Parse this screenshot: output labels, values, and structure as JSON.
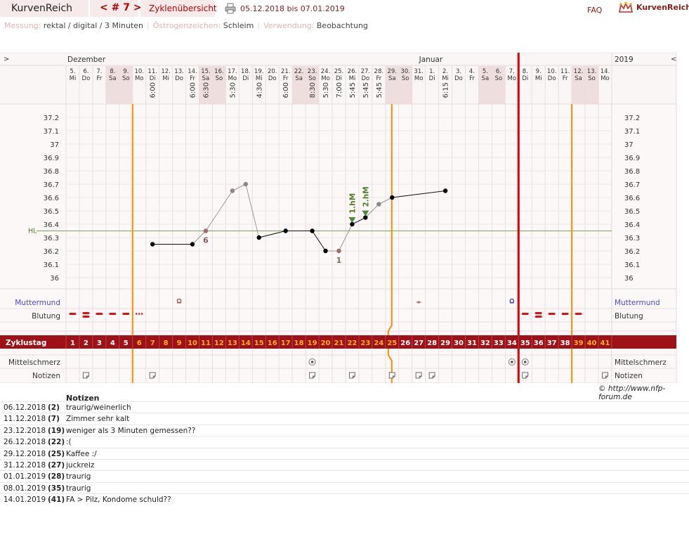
{
  "header": {
    "app_title": "KurvenReich",
    "cycle_nav": "< # 7 >",
    "tab_label": "Zyklenübersicht",
    "date_range": "05.12.2018 bis 07.01.2019",
    "faq_label": "FAQ",
    "logo_text": "KurvenReich"
  },
  "meta": {
    "measurement_label": "Messung:",
    "measurement_value": "rektal / digital / 3 Minuten",
    "estrogen_label": "Östrogenzeichen:",
    "estrogen_value": "Schleim",
    "usage_label": "Verwendung:",
    "usage_value": "Beobachtung"
  },
  "chart_data": {
    "type": "line",
    "title": "",
    "months": {
      "december": "Dezember",
      "january": "Januar",
      "year": "2019"
    },
    "nav_prev": ">",
    "nav_next": "<",
    "days": [
      {
        "date": "5.",
        "wd": "Mi",
        "time": "",
        "we": false
      },
      {
        "date": "6.",
        "wd": "Do",
        "time": "",
        "we": false
      },
      {
        "date": "7.",
        "wd": "Fr",
        "time": "",
        "we": false
      },
      {
        "date": "8.",
        "wd": "Sa",
        "time": "",
        "we": true
      },
      {
        "date": "9.",
        "wd": "So",
        "time": "",
        "we": true
      },
      {
        "date": "10.",
        "wd": "Mo",
        "time": "",
        "we": false
      },
      {
        "date": "11.",
        "wd": "Di",
        "time": "6:00",
        "we": false
      },
      {
        "date": "12.",
        "wd": "Mi",
        "time": "",
        "we": false
      },
      {
        "date": "13.",
        "wd": "Do",
        "time": "",
        "we": false
      },
      {
        "date": "14.",
        "wd": "Fr",
        "time": "6:00",
        "we": false
      },
      {
        "date": "15.",
        "wd": "Sa",
        "time": "6:30",
        "we": true
      },
      {
        "date": "16.",
        "wd": "So",
        "time": "",
        "we": true
      },
      {
        "date": "17.",
        "wd": "Mo",
        "time": "5:30",
        "we": false
      },
      {
        "date": "18.",
        "wd": "Di",
        "time": "",
        "we": false
      },
      {
        "date": "19.",
        "wd": "Mi",
        "time": "4:30",
        "we": false
      },
      {
        "date": "20.",
        "wd": "Do",
        "time": "",
        "we": false
      },
      {
        "date": "21.",
        "wd": "Fr",
        "time": "6:00",
        "we": false
      },
      {
        "date": "22.",
        "wd": "Sa",
        "time": "",
        "we": true
      },
      {
        "date": "23.",
        "wd": "So",
        "time": "8:30",
        "we": true
      },
      {
        "date": "24.",
        "wd": "Mo",
        "time": "5:30",
        "we": false
      },
      {
        "date": "25.",
        "wd": "Di",
        "time": "7:00",
        "we": false
      },
      {
        "date": "26.",
        "wd": "Mi",
        "time": "5:45",
        "we": false
      },
      {
        "date": "27.",
        "wd": "Do",
        "time": "5:45",
        "we": false
      },
      {
        "date": "28.",
        "wd": "Fr",
        "time": "5:45",
        "we": false
      },
      {
        "date": "29.",
        "wd": "Sa",
        "time": "",
        "we": true
      },
      {
        "date": "30.",
        "wd": "So",
        "time": "",
        "we": true
      },
      {
        "date": "31.",
        "wd": "Mo",
        "time": "",
        "we": false
      },
      {
        "date": "1.",
        "wd": "Di",
        "time": "",
        "we": false
      },
      {
        "date": "2.",
        "wd": "Mi",
        "time": "6:15",
        "we": false
      },
      {
        "date": "3.",
        "wd": "Do",
        "time": "",
        "we": false
      },
      {
        "date": "4.",
        "wd": "Fr",
        "time": "",
        "we": false
      },
      {
        "date": "5.",
        "wd": "Sa",
        "time": "",
        "we": true
      },
      {
        "date": "6.",
        "wd": "So",
        "time": "",
        "we": true
      },
      {
        "date": "7.",
        "wd": "Mo",
        "time": "",
        "we": false
      },
      {
        "date": "8.",
        "wd": "Di",
        "time": "",
        "we": false
      },
      {
        "date": "9.",
        "wd": "Mi",
        "time": "",
        "we": false
      },
      {
        "date": "10.",
        "wd": "Do",
        "time": "",
        "we": false
      },
      {
        "date": "11.",
        "wd": "Fr",
        "time": "",
        "we": false
      },
      {
        "date": "12.",
        "wd": "Sa",
        "time": "",
        "we": true
      },
      {
        "date": "13.",
        "wd": "So",
        "time": "",
        "we": true
      },
      {
        "date": "14.",
        "wd": "Mo",
        "time": "",
        "we": false
      }
    ],
    "y_ticks": [
      "37.2",
      "37.1",
      "37",
      "36.9",
      "36.8",
      "36.7",
      "36.6",
      "36.5",
      "36.4",
      "36.3",
      "36.2",
      "36.1",
      "36"
    ],
    "ylim": [
      36.0,
      37.2
    ],
    "hl_label": "HL",
    "hl_value": 36.35,
    "temperatures": [
      {
        "day": 7,
        "temp": 36.25,
        "grey": false
      },
      {
        "day": 10,
        "temp": 36.25,
        "grey": false
      },
      {
        "day": 11,
        "temp": 36.35,
        "grey": true,
        "label": "6"
      },
      {
        "day": 13,
        "temp": 36.65,
        "grey": true
      },
      {
        "day": 14,
        "temp": 36.7,
        "grey": true
      },
      {
        "day": 15,
        "temp": 36.3,
        "grey": false
      },
      {
        "day": 17,
        "temp": 36.35,
        "grey": false
      },
      {
        "day": 19,
        "temp": 36.35,
        "grey": false
      },
      {
        "day": 20,
        "temp": 36.2,
        "grey": false
      },
      {
        "day": 21,
        "temp": 36.2,
        "grey": true,
        "label": "1"
      },
      {
        "day": 22,
        "temp": 36.4,
        "grey": false
      },
      {
        "day": 23,
        "temp": 36.45,
        "grey": false
      },
      {
        "day": 24,
        "temp": 36.55,
        "grey": true
      },
      {
        "day": 25,
        "temp": 36.6,
        "grey": false
      },
      {
        "day": 29,
        "temp": 36.65,
        "grey": false
      }
    ],
    "markers": [
      {
        "day": 22,
        "label": "1.hM"
      },
      {
        "day": 23,
        "label": "2.hM"
      }
    ],
    "rows": {
      "muttermund": "Muttermund",
      "blutung": "Blutung",
      "zyklustag": "Zyklustag",
      "mittelschmerz": "Mittelschmerz",
      "notizen": "Notizen"
    },
    "cycle_days": [
      "1",
      "2",
      "3",
      "4",
      "5",
      "6",
      "7",
      "8",
      "9",
      "10",
      "11",
      "12",
      "13",
      "14",
      "15",
      "16",
      "17",
      "18",
      "19",
      "20",
      "21",
      "22",
      "23",
      "24",
      "25",
      "26",
      "27",
      "28",
      "29",
      "30",
      "31",
      "32",
      "33",
      "34",
      "35",
      "36",
      "37",
      "38",
      "39",
      "40",
      "41"
    ],
    "muttermund_days": [
      9,
      27,
      34
    ],
    "bleeding": [
      {
        "day": 1,
        "style": "dash"
      },
      {
        "day": 2,
        "style": "double"
      },
      {
        "day": 3,
        "style": "dash"
      },
      {
        "day": 4,
        "style": "dash"
      },
      {
        "day": 5,
        "style": "dash"
      },
      {
        "day": 6,
        "style": "dots"
      },
      {
        "day": 35,
        "style": "dash"
      },
      {
        "day": 36,
        "style": "double"
      },
      {
        "day": 37,
        "style": "dash"
      },
      {
        "day": 38,
        "style": "dash"
      },
      {
        "day": 39,
        "style": "dash"
      }
    ],
    "mittelschmerz_days": [
      19,
      34,
      35
    ],
    "note_days": [
      2,
      7,
      19,
      22,
      25,
      27,
      28,
      35,
      41
    ],
    "orange_days": [
      6,
      25,
      39
    ],
    "cycle_end_day": 35,
    "colors": {
      "accent": "#9e1116",
      "orange": "#ff8c00",
      "green": "#4f7f27",
      "grey_point": "#888888",
      "weekend": "#efdede"
    }
  },
  "copyright": "© http://www.nfp-forum.de",
  "notes": {
    "heading": "Notizen",
    "entries": [
      {
        "date": "06.12.2018",
        "day": "(2)",
        "text": "traurig/weinerlich"
      },
      {
        "date": "11.12.2018",
        "day": "(7)",
        "text": "Zimmer sehr kalt"
      },
      {
        "date": "23.12.2018",
        "day": "(19)",
        "text": "weniger als 3 Minuten gemessen??"
      },
      {
        "date": "26.12.2018",
        "day": "(22)",
        "text": ":("
      },
      {
        "date": "29.12.2018",
        "day": "(25)",
        "text": "Kaffee :/"
      },
      {
        "date": "31.12.2018",
        "day": "(27)",
        "text": "juckreiz"
      },
      {
        "date": "01.01.2019",
        "day": "(28)",
        "text": "traurig"
      },
      {
        "date": "08.01.2019",
        "day": "(35)",
        "text": "traurig"
      },
      {
        "date": "14.01.2019",
        "day": "(41)",
        "text": "FA > Pilz, Kondome schuld??"
      }
    ]
  }
}
